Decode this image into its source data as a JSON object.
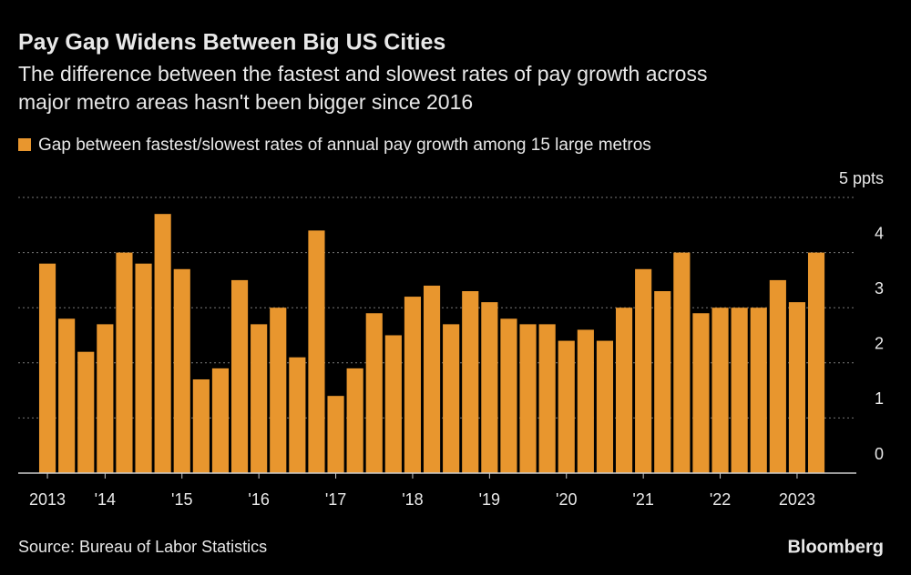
{
  "chart_data": {
    "type": "bar",
    "title": "Pay Gap Widens Between Big US Cities",
    "subtitle": [
      "The difference between the fastest and slowest rates of pay growth across",
      "major metro areas hasn't been bigger since 2016"
    ],
    "legend": "Gap between fastest/slowest rates of annual pay growth among 15 large metros",
    "source": "Source: Bureau of Labor Statistics",
    "brand": "Bloomberg",
    "color": "#e8962e",
    "grid": true,
    "categories": [
      "2013",
      null,
      null,
      "'14",
      null,
      null,
      null,
      "'15",
      null,
      null,
      null,
      "'16",
      null,
      null,
      null,
      "'17",
      null,
      null,
      null,
      "'18",
      null,
      null,
      null,
      "'19",
      null,
      null,
      null,
      "'20",
      null,
      null,
      null,
      "'21",
      null,
      null,
      null,
      "'22",
      null,
      null,
      null,
      "2023",
      null
    ],
    "values": [
      3.8,
      2.8,
      2.2,
      2.7,
      4.0,
      3.8,
      4.7,
      3.7,
      1.7,
      1.9,
      3.5,
      2.7,
      3.0,
      2.1,
      4.4,
      1.4,
      1.9,
      2.9,
      2.5,
      3.2,
      3.4,
      2.7,
      3.3,
      3.1,
      2.8,
      2.7,
      2.7,
      2.4,
      2.6,
      2.4,
      3.0,
      3.7,
      3.3,
      4.0,
      2.9,
      3.0,
      3.0,
      3.0,
      3.5,
      3.1,
      4.0
    ],
    "ylim": [
      0,
      5
    ],
    "yticks": [
      0,
      1,
      2,
      3,
      4,
      {
        "value": 5,
        "label": "5 ppts"
      }
    ]
  }
}
